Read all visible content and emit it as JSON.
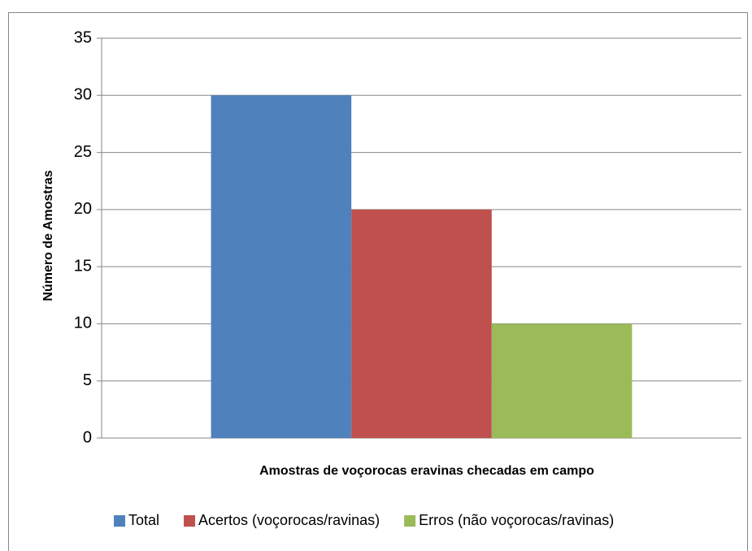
{
  "chart_data": {
    "type": "bar",
    "x_label": "Amostras de voçorocas eravinas checadas em campo",
    "y_label": "Número de Amostras",
    "categories": [
      null
    ],
    "series": [
      {
        "name": "Total",
        "color": "#4f81bd",
        "values": [
          30
        ]
      },
      {
        "name": "Acertos (voçorocas/ravinas)",
        "color": "#c0504d",
        "values": [
          20
        ]
      },
      {
        "name": "Erros (não voçorocas/ravinas)",
        "color": "#9bbb59",
        "values": [
          10
        ]
      }
    ],
    "ylim": [
      0,
      35
    ],
    "yticks": [
      0,
      5,
      10,
      15,
      20,
      25,
      30,
      35
    ],
    "grid": true,
    "legend": "bottom"
  }
}
